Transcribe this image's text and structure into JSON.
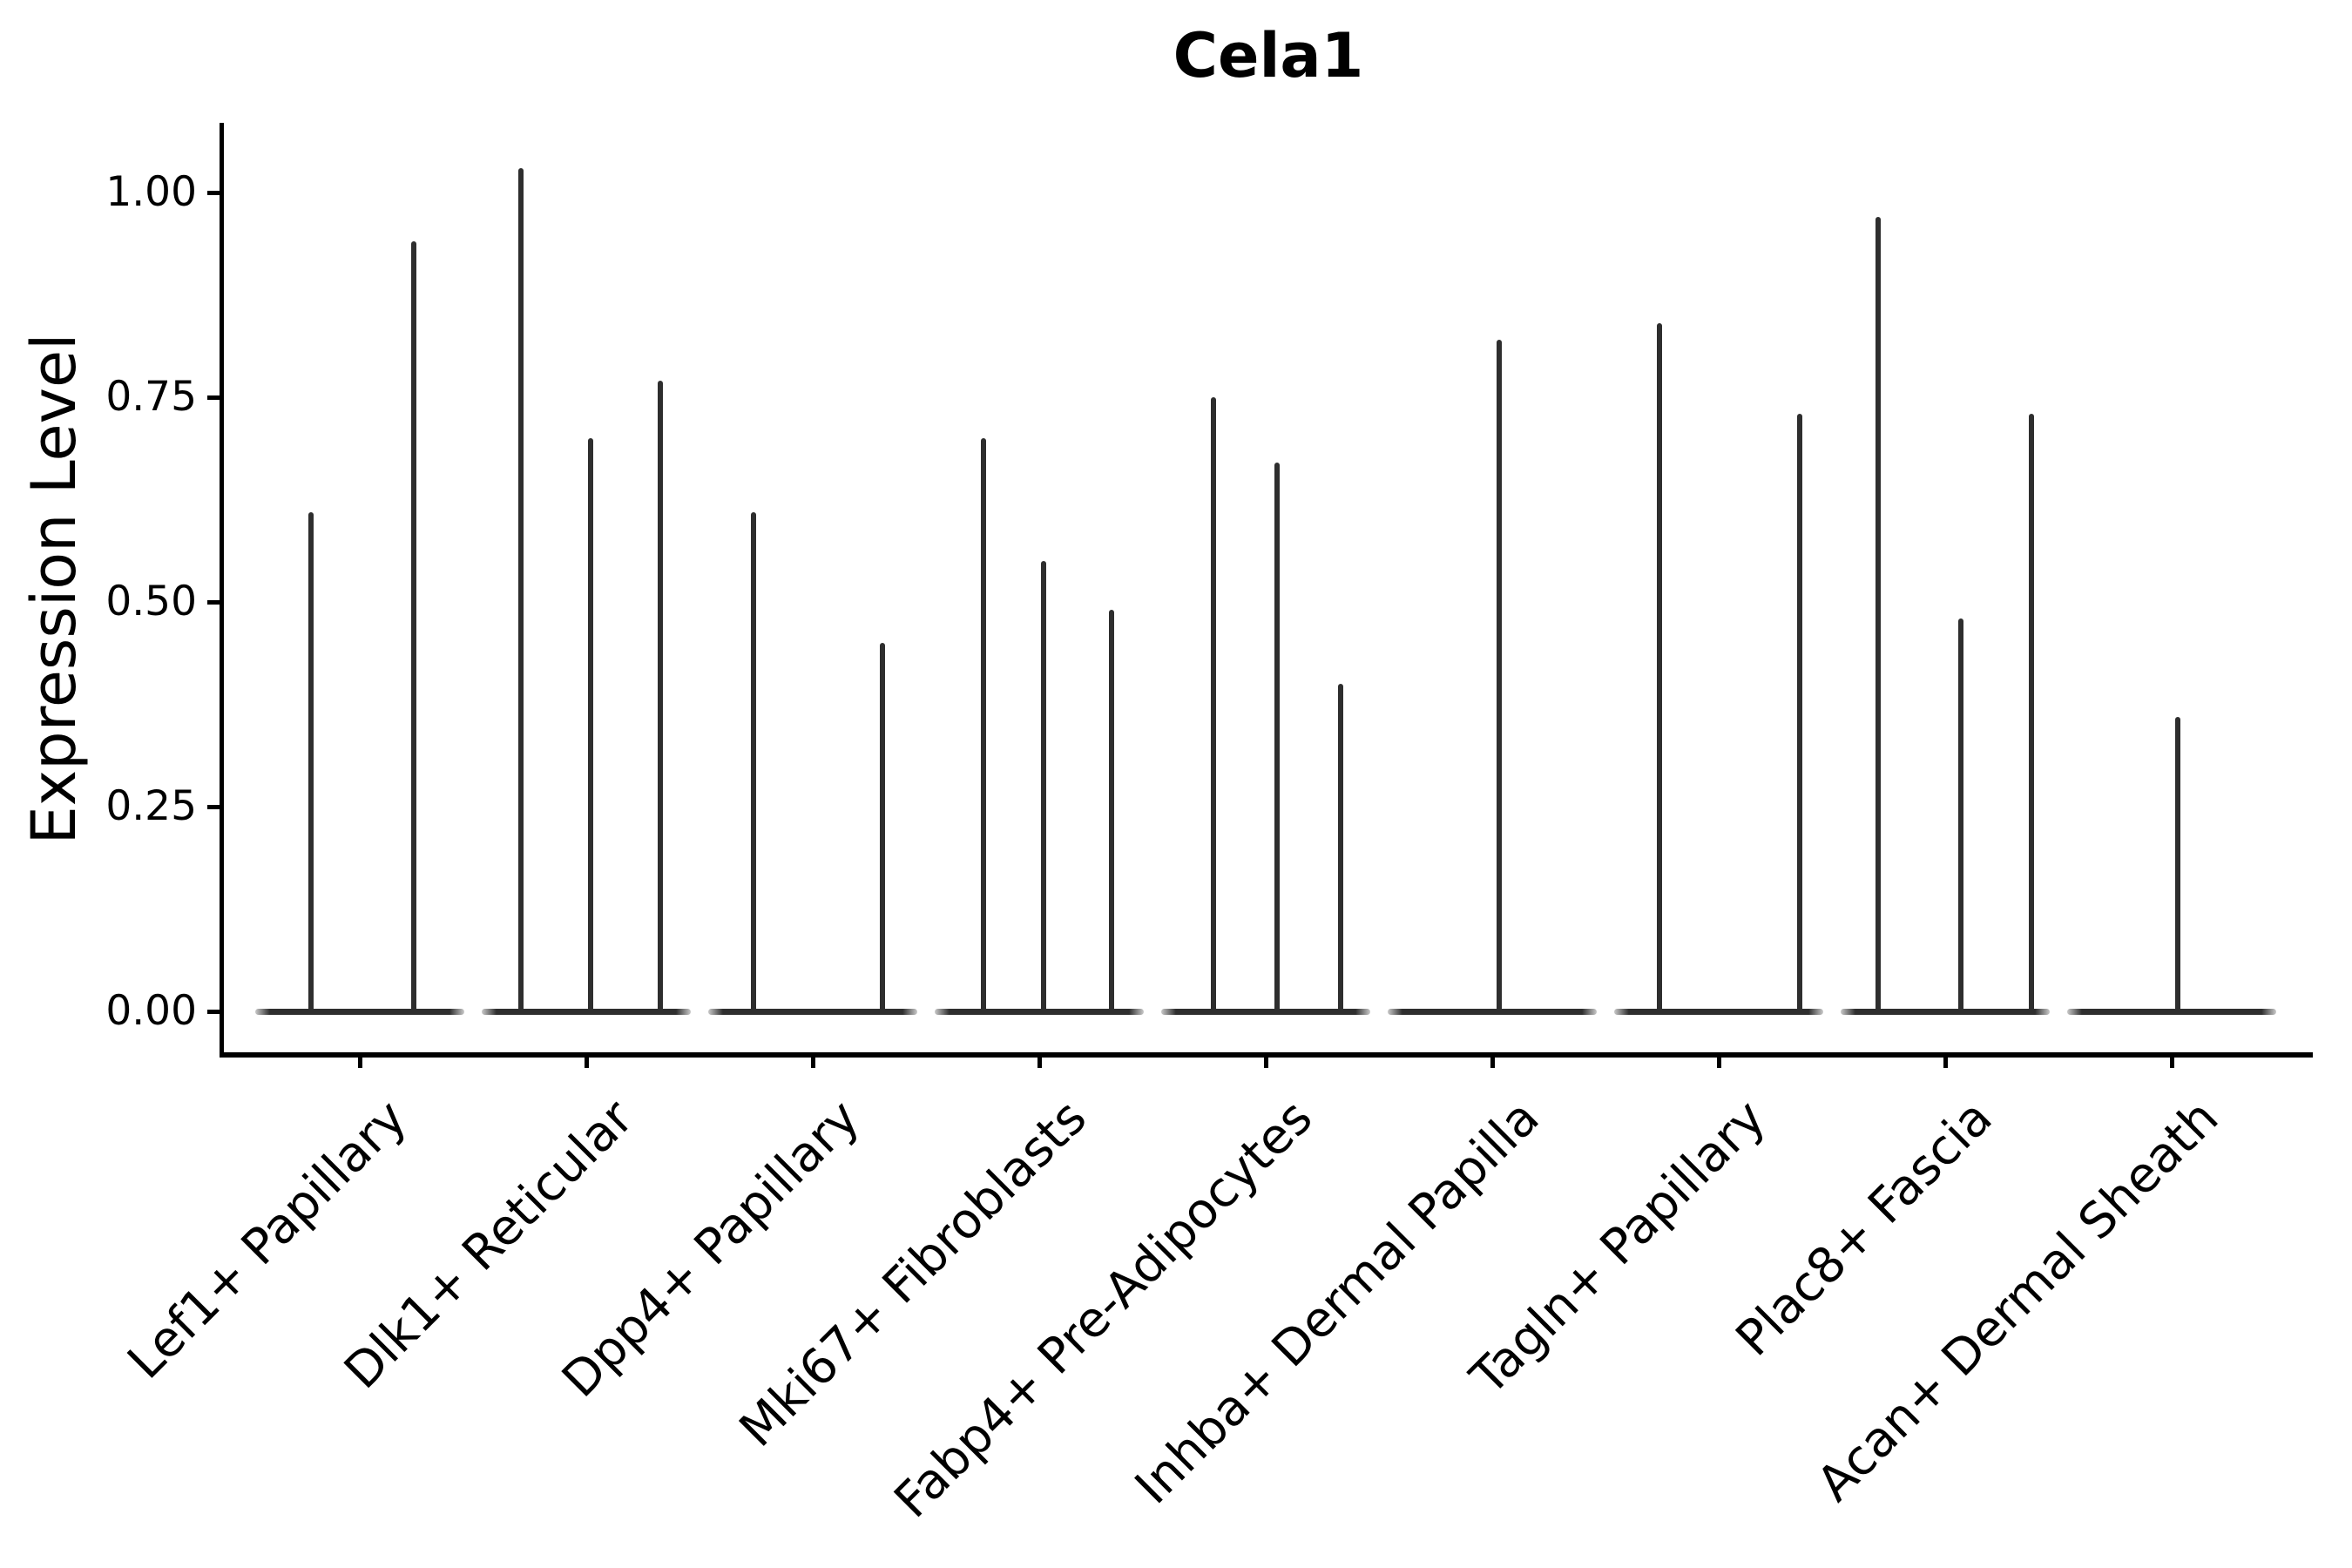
{
  "title": "Cela1",
  "y_axis": {
    "label": "Expression Level",
    "tick_labels": [
      "1.00",
      "0.75",
      "0.50",
      "0.25",
      "0.00"
    ]
  },
  "colors": {
    "violin": "#2e2e2e",
    "axis": "#000000",
    "text": "#000000",
    "background": "#ffffff"
  },
  "chart_data": {
    "type": "violin",
    "title": "Cela1",
    "xlabel": "",
    "ylabel": "Expression Level",
    "ylim": [
      -0.05,
      1.09
    ],
    "yticks": [
      1.0,
      0.75,
      0.5,
      0.25,
      0.0
    ],
    "grid": false,
    "legend": false,
    "description": "Violin plot of Cela1 expression; each violin is collapsed to a flat bar at 0 with thin density spikes rising to the maximum expression value. Spike offset is horizontal position (px) relative to the category center.",
    "categories": [
      "Lef1+ Papillary",
      "Dlk1+ Reticular",
      "Dpp4+ Papillary",
      "Mki67+ Fibroblasts",
      "Fabp4+ Pre-Adipocytes",
      "Inhba+ Dermal Papilla",
      "Tagln+ Papillary",
      "Plac8+ Fascia",
      "Acan+ Dermal Sheath"
    ],
    "series": [
      {
        "category": "Lef1+ Papillary",
        "spikes": [
          {
            "offset": -56,
            "max": 0.61
          },
          {
            "offset": 62,
            "max": 0.94
          }
        ]
      },
      {
        "category": "Dlk1+ Reticular",
        "spikes": [
          {
            "offset": -75,
            "max": 1.03
          },
          {
            "offset": 5,
            "max": 0.7
          },
          {
            "offset": 85,
            "max": 0.77
          }
        ]
      },
      {
        "category": "Dpp4+ Papillary",
        "spikes": [
          {
            "offset": -68,
            "max": 0.61
          },
          {
            "offset": 80,
            "max": 0.45
          }
        ]
      },
      {
        "category": "Mki67+ Fibroblasts",
        "spikes": [
          {
            "offset": -64,
            "max": 0.7
          },
          {
            "offset": 5,
            "max": 0.55
          },
          {
            "offset": 83,
            "max": 0.49
          }
        ]
      },
      {
        "category": "Fabp4+ Pre-Adipocytes",
        "spikes": [
          {
            "offset": -60,
            "max": 0.75
          },
          {
            "offset": 13,
            "max": 0.67
          },
          {
            "offset": 86,
            "max": 0.4
          }
        ]
      },
      {
        "category": "Inhba+ Dermal Papilla",
        "spikes": [
          {
            "offset": 8,
            "max": 0.82
          }
        ]
      },
      {
        "category": "Tagln+ Papillary",
        "spikes": [
          {
            "offset": -68,
            "max": 0.84
          },
          {
            "offset": 93,
            "max": 0.73
          }
        ]
      },
      {
        "category": "Plac8+ Fascia",
        "spikes": [
          {
            "offset": -77,
            "max": 0.97
          },
          {
            "offset": 18,
            "max": 0.48
          },
          {
            "offset": 99,
            "max": 0.73
          }
        ]
      },
      {
        "category": "Acan+ Dermal Sheath",
        "spikes": [
          {
            "offset": 7,
            "max": 0.36
          }
        ]
      }
    ]
  }
}
